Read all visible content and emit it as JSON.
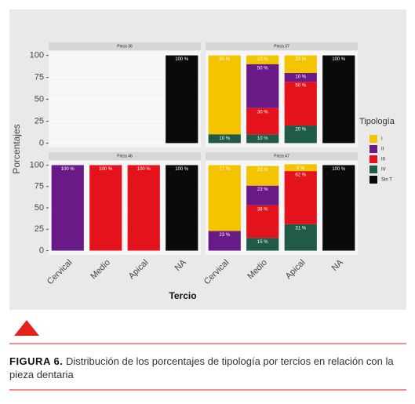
{
  "chart_data": {
    "type": "stacked_bar",
    "categories": [
      "Cervical",
      "Medio",
      "Apical",
      "NA"
    ],
    "y_label": "Porcentajes",
    "x_label": "Tercio",
    "legend_title": "Tipología",
    "ylim": [
      -5,
      105
    ],
    "yticks": [
      0,
      25,
      50,
      75,
      100
    ],
    "series": [
      {
        "name": "I",
        "color": "#f5c400"
      },
      {
        "name": "II",
        "color": "#6a1a87"
      },
      {
        "name": "III",
        "color": "#e4131b"
      },
      {
        "name": "IV",
        "color": "#1f5b47"
      },
      {
        "name": "Sin T",
        "color": "#0a0a0a"
      }
    ],
    "facets": [
      {
        "title": "Pieza 36",
        "values": [
          [
            null,
            null,
            null,
            null
          ],
          [
            null,
            null,
            null,
            null
          ],
          [
            null,
            null,
            null,
            null
          ],
          [
            null,
            null,
            null,
            null
          ],
          [
            null,
            null,
            null,
            100
          ]
        ],
        "value_labels": [
          [
            null,
            null,
            null,
            null
          ],
          [
            null,
            null,
            null,
            null
          ],
          [
            null,
            null,
            null,
            null
          ],
          [
            null,
            null,
            null,
            null
          ],
          [
            null,
            null,
            null,
            "100 %"
          ]
        ]
      },
      {
        "title": "Pieza 37",
        "values": [
          [
            90,
            10,
            20,
            null
          ],
          [
            null,
            50,
            10,
            null
          ],
          [
            null,
            30,
            50,
            null
          ],
          [
            10,
            10,
            20,
            null
          ],
          [
            null,
            null,
            null,
            100
          ]
        ],
        "value_labels": [
          [
            "90 %",
            "10 %",
            "20 %",
            null
          ],
          [
            null,
            "50 %",
            "10 %",
            null
          ],
          [
            null,
            "30 %",
            "50 %",
            null
          ],
          [
            "10 %",
            "10 %",
            "20 %",
            null
          ],
          [
            null,
            null,
            null,
            "100 %"
          ]
        ]
      },
      {
        "title": "Pieza 46",
        "values": [
          [
            null,
            null,
            null,
            null
          ],
          [
            100,
            null,
            null,
            null
          ],
          [
            null,
            100,
            100,
            null
          ],
          [
            null,
            null,
            null,
            null
          ],
          [
            null,
            null,
            null,
            100
          ]
        ],
        "value_labels": [
          [
            null,
            null,
            null,
            null
          ],
          [
            "100 %",
            null,
            null,
            null
          ],
          [
            null,
            "100 %",
            "100 %",
            null
          ],
          [
            null,
            null,
            null,
            null
          ],
          [
            null,
            null,
            null,
            "100 %"
          ]
        ]
      },
      {
        "title": "Pieza 47",
        "values": [
          [
            77,
            23,
            8,
            null
          ],
          [
            23,
            23,
            null,
            null
          ],
          [
            null,
            38,
            62,
            null
          ],
          [
            null,
            15,
            31,
            null
          ],
          [
            null,
            null,
            null,
            100
          ]
        ],
        "value_labels": [
          [
            "77 %",
            "23 %",
            "8 %",
            null
          ],
          [
            "23 %",
            "23 %",
            null,
            null
          ],
          [
            null,
            "38 %",
            "62 %",
            null
          ],
          [
            null,
            "15 %",
            "31 %",
            null
          ],
          [
            null,
            null,
            null,
            "100 %"
          ]
        ]
      }
    ]
  },
  "figure": {
    "label": "FIGURA 6.",
    "caption": "Distribución de los porcentajes de tipología por tercios en relación con la pieza dentaria"
  }
}
